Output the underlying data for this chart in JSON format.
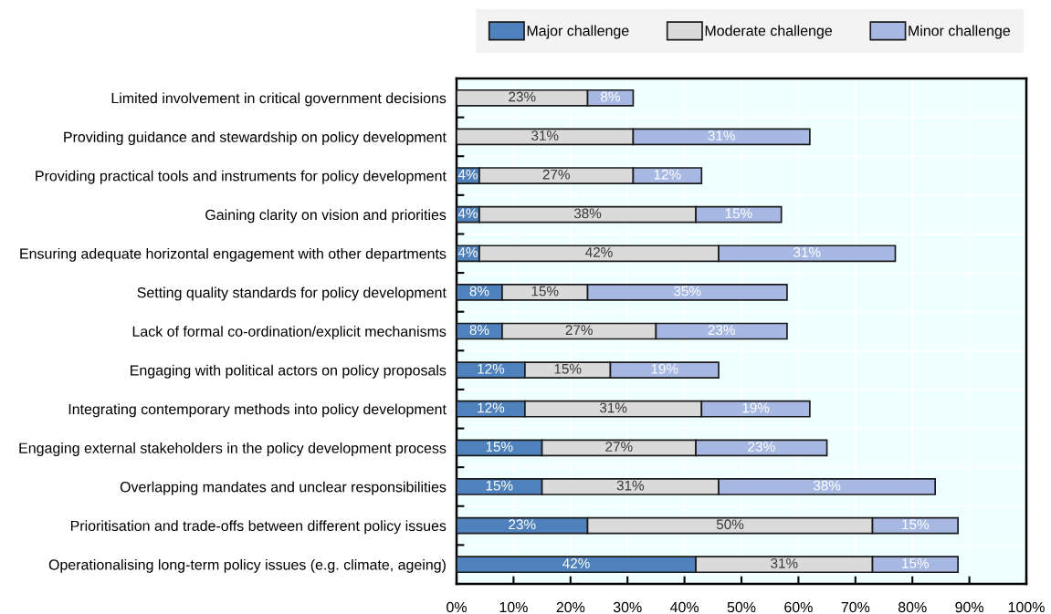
{
  "chart_data": {
    "type": "bar",
    "orientation": "horizontal",
    "stacked": true,
    "categories": [
      "Limited involvement in critical government decisions",
      "Providing guidance and stewardship on policy development",
      "Providing practical tools and instruments for policy development",
      "Gaining clarity on vision and priorities",
      "Ensuring adequate horizontal engagement with other departments",
      "Setting quality standards for policy development",
      "Lack of formal co-ordination/explicit mechanisms",
      "Engaging with political actors on policy proposals",
      "Integrating contemporary methods into policy development",
      "Engaging external stakeholders in the policy development process",
      "Overlapping mandates and unclear responsibilities",
      "Prioritisation and trade-offs between different policy issues",
      "Operationalising long-term policy issues (e.g. climate, ageing)"
    ],
    "series": [
      {
        "name": "Major challenge",
        "color": "#4f81bd",
        "values": [
          null,
          null,
          4,
          4,
          4,
          8,
          8,
          12,
          12,
          15,
          15,
          23,
          42
        ],
        "value_labels": [
          null,
          null,
          "4%",
          "4%",
          "4%",
          "8%",
          "8%",
          "12%",
          "12%",
          "15%",
          "15%",
          "23%",
          "42%"
        ]
      },
      {
        "name": "Moderate challenge",
        "color": "#dadada",
        "values": [
          23,
          31,
          27,
          38,
          42,
          15,
          27,
          15,
          31,
          27,
          31,
          50,
          31
        ],
        "value_labels": [
          "23%",
          "31%",
          "27%",
          "38%",
          "42%",
          "15%",
          "27%",
          "15%",
          "31%",
          "27%",
          "31%",
          "50%",
          "31%"
        ]
      },
      {
        "name": "Minor challenge",
        "color": "#a7b8e3",
        "values": [
          8,
          31,
          12,
          15,
          31,
          35,
          23,
          19,
          19,
          23,
          38,
          15,
          15
        ],
        "value_labels": [
          "8%",
          "31%",
          "12%",
          "15%",
          "31%",
          "35%",
          "23%",
          "19%",
          "19%",
          "23%",
          "38%",
          "15%",
          "15%"
        ]
      }
    ],
    "xlim": [
      0,
      100
    ],
    "xticks": [
      {
        "value": 0,
        "label": "0%"
      },
      {
        "value": 10,
        "label": "10%"
      },
      {
        "value": 20,
        "label": "20%"
      },
      {
        "value": 30,
        "label": "30%"
      },
      {
        "value": 40,
        "label": "40%"
      },
      {
        "value": 50,
        "label": "50%"
      },
      {
        "value": 60,
        "label": "60%"
      },
      {
        "value": 70,
        "label": "70%"
      },
      {
        "value": 80,
        "label": "80%"
      },
      {
        "value": 90,
        "label": "90%"
      },
      {
        "value": 100,
        "label": "100%"
      }
    ],
    "grid": true,
    "legend": "top"
  }
}
